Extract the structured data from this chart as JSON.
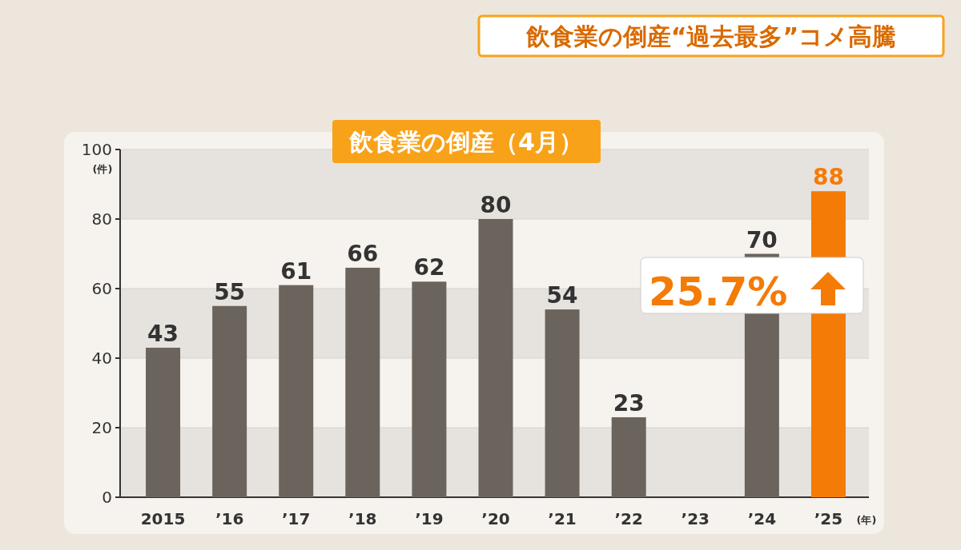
{
  "chart_data": {
    "type": "bar",
    "title": "飲食業の倒産“過去最多”コメ高騰",
    "subtitle": "飲食業の倒産（4月）",
    "categories": [
      "2015",
      "’16",
      "’17",
      "’18",
      "’19",
      "’20",
      "’21",
      "’22",
      "’23",
      "’24",
      "’25"
    ],
    "values": [
      43,
      55,
      61,
      66,
      62,
      80,
      54,
      23,
      null,
      70,
      88
    ],
    "colors": [
      "#6b645d",
      "#6b645d",
      "#6b645d",
      "#6b645d",
      "#6b645d",
      "#6b645d",
      "#6b645d",
      "#6b645d",
      "#6b645d",
      "#6b645d",
      "#f47b06"
    ],
    "value_labels": [
      "43",
      "55",
      "61",
      "66",
      "62",
      "80",
      "54",
      "23",
      null,
      "70",
      "88"
    ],
    "ylim": [
      0,
      100
    ],
    "yticks": [
      0,
      20,
      40,
      60,
      80,
      100
    ],
    "ylabel": "(件)",
    "xlabel": "(年)",
    "grid": "y",
    "annotations": [
      "25.7%"
    ]
  }
}
